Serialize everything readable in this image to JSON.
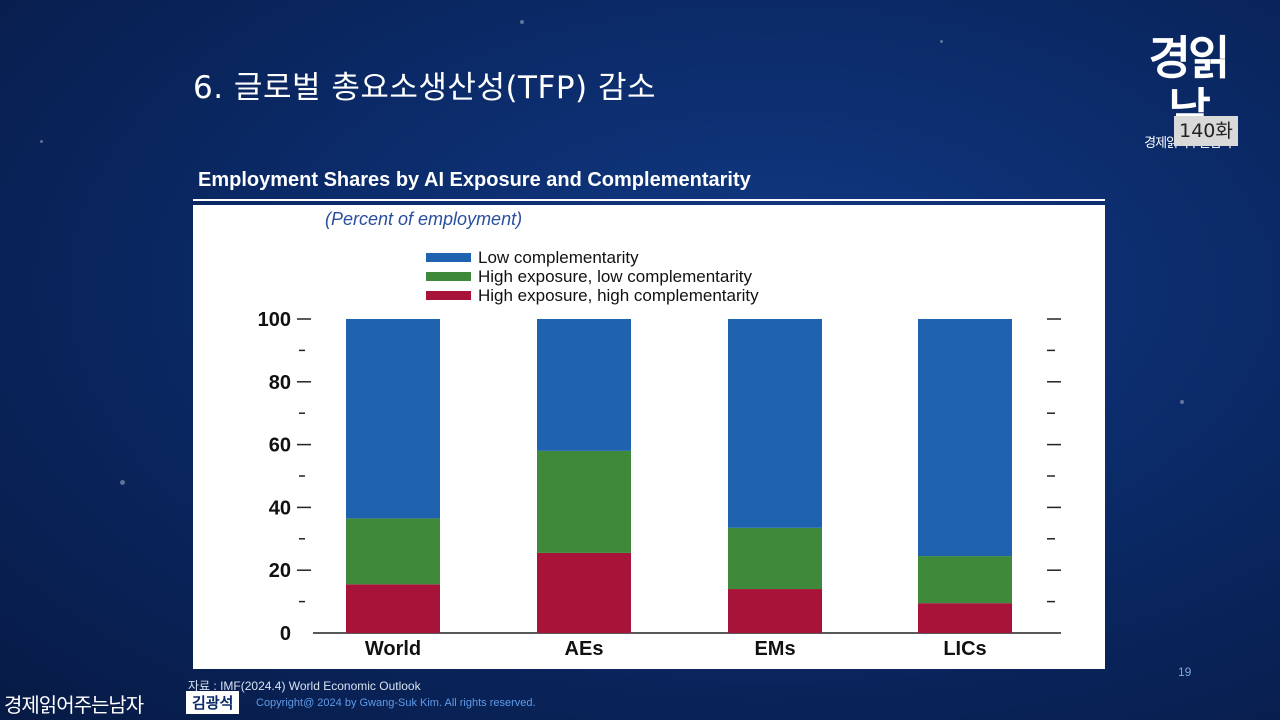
{
  "slide": {
    "title": "6. 글로벌 총요소생산성(TFP) 감소",
    "logo_big": "경읽남",
    "logo_small": "경제읽어주는남자",
    "episode": "140화",
    "source": "자료 : IMF(2024.4) World Economic Outlook",
    "page_number": "19",
    "footer_brand": "경제읽어주는남자",
    "footer_author": "김광석",
    "copyright": "Copyright@ 2024 by Gwang-Suk Kim. All rights reserved."
  },
  "chart_data": {
    "type": "bar",
    "stacked": true,
    "title": "Employment Shares by AI Exposure and Complementarity",
    "subtitle": "(Percent of employment)",
    "categories": [
      "World",
      "AEs",
      "EMs",
      "LICs"
    ],
    "ylim": [
      0,
      100
    ],
    "yticks": [
      "0",
      "20",
      "40",
      "60",
      "80",
      "100"
    ],
    "grid": false,
    "legend_position": "top",
    "series": [
      {
        "name": "High exposure, high complementarity",
        "values": [
          15.5,
          25.5,
          14,
          9.5
        ],
        "color": "#a8133a"
      },
      {
        "name": "High exposure, low complementarity",
        "values": [
          21,
          32.5,
          19.5,
          15
        ],
        "color": "#3e8a3a"
      },
      {
        "name": "Low complementarity",
        "values": [
          63.5,
          42,
          66.5,
          75.5
        ],
        "color": "#1f63b0"
      }
    ],
    "legend_order": [
      2,
      1,
      0
    ]
  }
}
